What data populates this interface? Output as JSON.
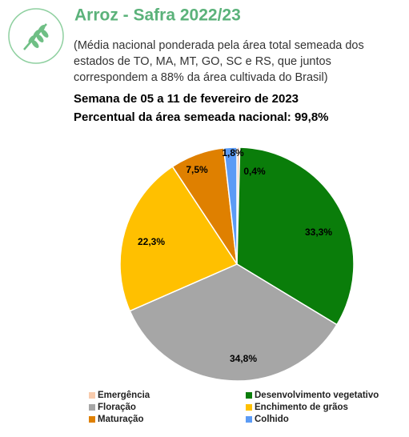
{
  "header": {
    "title": "Arroz - Safra 2022/23",
    "subtitle_lines": [
      "(Média nacional ponderada pela área total semeada dos",
      "estados de TO, MA, MT, GO, SC e RS, que juntos",
      "correspondem a 88% da área cultivada do Brasil)"
    ],
    "week": "Semana de 05 a 11 de fevereiro de 2023",
    "share": "Percentual da área semeada nacional: 99,8%"
  },
  "chart_data": {
    "type": "pie",
    "categories": [
      "Emergência",
      "Desenvolvimento vegetativo",
      "Floração",
      "Enchimento de grãos",
      "Maturação",
      "Colhido"
    ],
    "values": [
      0.4,
      33.3,
      34.8,
      22.3,
      7.5,
      1.8
    ],
    "value_labels": [
      "0,4%",
      "33,3%",
      "34,8%",
      "22,3%",
      "7,5%",
      "1,8%"
    ],
    "colors": [
      "#f8cbad",
      "#0a7d0a",
      "#a6a6a6",
      "#ffc000",
      "#df8000",
      "#5b9bf5"
    ],
    "legend": "bottom"
  }
}
